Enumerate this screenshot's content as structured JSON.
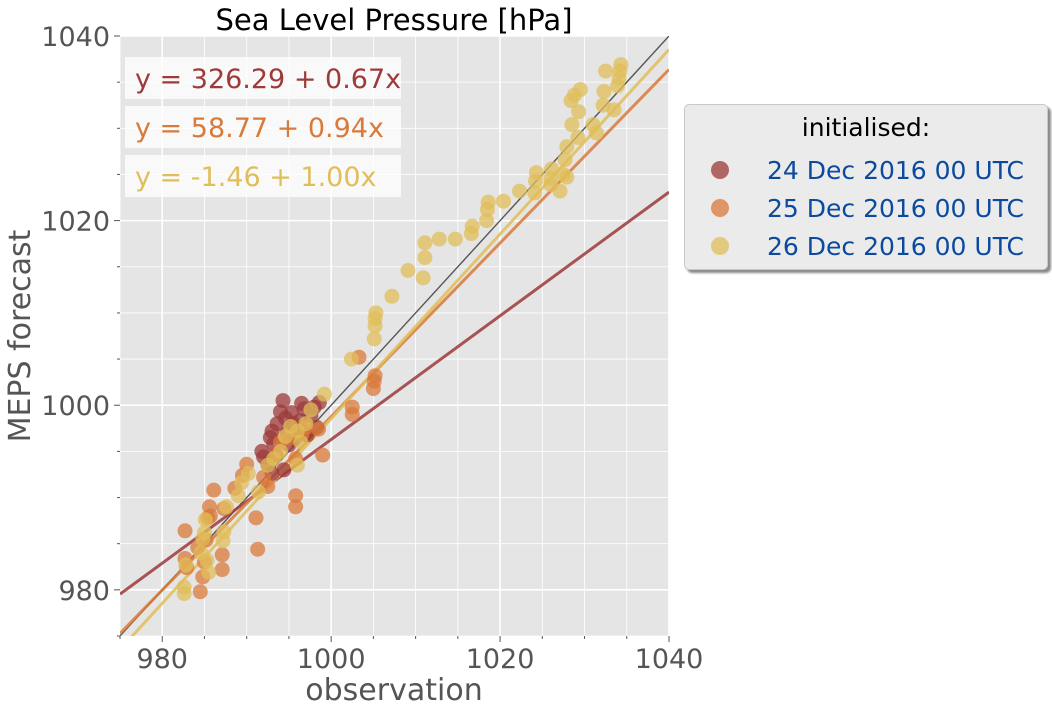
{
  "chart_data": {
    "type": "scatter",
    "title": "Sea Level Pressure [hPa]",
    "xlabel": "observation",
    "ylabel": "MEPS forecast",
    "xlim": [
      975,
      1040
    ],
    "ylim": [
      975,
      1040
    ],
    "xticks": [
      980,
      1000,
      1020,
      1040
    ],
    "yticks": [
      980,
      1000,
      1020,
      1040
    ],
    "grid": true,
    "legend": {
      "title": "initialised:",
      "placement": "outside-right"
    },
    "series": [
      {
        "name": "24 Dec 2016 00 UTC",
        "color": "#9e3a3a",
        "fit_label": "y = 326.29 + 0.67x",
        "fit": {
          "intercept": 326.29,
          "slope": 0.67
        },
        "points": [
          [
            992.8,
            996.5
          ],
          [
            993.0,
            997.2
          ],
          [
            993.2,
            995.8
          ],
          [
            993.4,
            994.6
          ],
          [
            993.6,
            998.0
          ],
          [
            994.0,
            999.3
          ],
          [
            994.3,
            1000.5
          ],
          [
            994.6,
            998.6
          ],
          [
            994.8,
            997.0
          ],
          [
            995.0,
            995.7
          ],
          [
            995.3,
            999.2
          ],
          [
            995.6,
            996.3
          ],
          [
            996.0,
            997.4
          ],
          [
            996.3,
            998.3
          ],
          [
            996.8,
            999.6
          ],
          [
            997.2,
            996.8
          ],
          [
            997.6,
            998.9
          ],
          [
            998.0,
            999.8
          ],
          [
            998.3,
            997.6
          ],
          [
            992.0,
            994.4
          ],
          [
            992.5,
            993.6
          ],
          [
            993.0,
            992.6
          ],
          [
            991.8,
            995.0
          ],
          [
            994.4,
            993.0
          ],
          [
            995.5,
            998.0
          ],
          [
            996.5,
            1000.2
          ],
          [
            997.0,
            997.0
          ],
          [
            998.6,
            1000.3
          ]
        ]
      },
      {
        "name": "25 Dec 2016 00 UTC",
        "color": "#d97a3a",
        "fit_label": "y = 58.77 + 0.94x",
        "fit": {
          "intercept": 58.77,
          "slope": 0.94
        },
        "points": [
          [
            982.7,
            986.4
          ],
          [
            982.7,
            983.4
          ],
          [
            982.9,
            982.4
          ],
          [
            984.5,
            979.8
          ],
          [
            984.8,
            981.4
          ],
          [
            985.0,
            983.0
          ],
          [
            985.2,
            985.4
          ],
          [
            985.4,
            987.8
          ],
          [
            985.6,
            989.0
          ],
          [
            987.1,
            982.2
          ],
          [
            987.1,
            983.8
          ],
          [
            987.3,
            988.8
          ],
          [
            988.6,
            991.0
          ],
          [
            989.5,
            992.4
          ],
          [
            990.0,
            993.6
          ],
          [
            991.1,
            987.8
          ],
          [
            991.3,
            984.4
          ],
          [
            992.0,
            992.2
          ],
          [
            992.5,
            991.2
          ],
          [
            993.5,
            994.6
          ],
          [
            994.0,
            996.0
          ],
          [
            995.0,
            996.4
          ],
          [
            995.8,
            990.2
          ],
          [
            995.8,
            989.0
          ],
          [
            995.8,
            994.2
          ],
          [
            996.5,
            996.8
          ],
          [
            997.0,
            997.6
          ],
          [
            998.5,
            997.4
          ],
          [
            999.0,
            994.6
          ],
          [
            1002.5,
            999.8
          ],
          [
            1002.5,
            999.0
          ],
          [
            1005.0,
            1001.8
          ],
          [
            1005.1,
            1002.6
          ],
          [
            1005.2,
            1003.2
          ],
          [
            1003.3,
            1005.2
          ],
          [
            985.7,
            988.0
          ],
          [
            984.2,
            984.6
          ],
          [
            986.1,
            990.8
          ]
        ]
      },
      {
        "name": "26 Dec 2016 00 UTC",
        "color": "#e0be5a",
        "fit_label": "y = -1.46 + 1.00x",
        "fit": {
          "intercept": -1.46,
          "slope": 1.0
        },
        "points": [
          [
            982.6,
            979.6
          ],
          [
            982.6,
            980.3
          ],
          [
            982.8,
            982.7
          ],
          [
            984.6,
            984.0
          ],
          [
            984.8,
            985.5
          ],
          [
            985.0,
            986.2
          ],
          [
            985.1,
            987.6
          ],
          [
            985.3,
            983.2
          ],
          [
            985.5,
            981.9
          ],
          [
            987.2,
            985.3
          ],
          [
            987.3,
            986.3
          ],
          [
            987.6,
            989.0
          ],
          [
            989.0,
            990.2
          ],
          [
            989.4,
            991.6
          ],
          [
            990.2,
            992.6
          ],
          [
            991.4,
            990.6
          ],
          [
            992.5,
            993.5
          ],
          [
            993.2,
            994.2
          ],
          [
            994.0,
            995.0
          ],
          [
            994.6,
            996.6
          ],
          [
            995.2,
            997.7
          ],
          [
            996.0,
            997.2
          ],
          [
            996.0,
            993.5
          ],
          [
            996.4,
            996.0
          ],
          [
            997.0,
            998.0
          ],
          [
            997.6,
            999.5
          ],
          [
            999.2,
            1001.2
          ],
          [
            1002.4,
            1005.0
          ],
          [
            1005.1,
            1007.2
          ],
          [
            1005.2,
            1008.6
          ],
          [
            1005.2,
            1009.4
          ],
          [
            1005.3,
            1010.0
          ],
          [
            1007.2,
            1011.8
          ],
          [
            1009.1,
            1014.6
          ],
          [
            1010.9,
            1013.8
          ],
          [
            1011.1,
            1016.0
          ],
          [
            1011.1,
            1017.6
          ],
          [
            1012.8,
            1018.0
          ],
          [
            1014.7,
            1018.0
          ],
          [
            1016.6,
            1018.6
          ],
          [
            1016.7,
            1019.4
          ],
          [
            1018.4,
            1020.0
          ],
          [
            1018.5,
            1021.2
          ],
          [
            1018.6,
            1022.0
          ],
          [
            1020.4,
            1022.1
          ],
          [
            1022.3,
            1023.2
          ],
          [
            1024.1,
            1023.0
          ],
          [
            1024.2,
            1024.3
          ],
          [
            1024.3,
            1025.2
          ],
          [
            1026.0,
            1024.6
          ],
          [
            1026.1,
            1025.6
          ],
          [
            1027.1,
            1023.2
          ],
          [
            1027.5,
            1025.0
          ],
          [
            1027.7,
            1026.6
          ],
          [
            1027.9,
            1028.0
          ],
          [
            1028.4,
            1033.0
          ],
          [
            1028.5,
            1030.4
          ],
          [
            1029.2,
            1029.0
          ],
          [
            1029.3,
            1031.8
          ],
          [
            1029.5,
            1034.2
          ],
          [
            1031.0,
            1030.4
          ],
          [
            1032.2,
            1032.5
          ],
          [
            1032.3,
            1034.0
          ],
          [
            1032.5,
            1036.2
          ],
          [
            1033.9,
            1034.6
          ],
          [
            1034.1,
            1035.4
          ],
          [
            1034.2,
            1036.2
          ],
          [
            1034.3,
            1036.9
          ],
          [
            1031.4,
            1029.5
          ],
          [
            1028.8,
            1033.6
          ],
          [
            1027.9,
            1024.7
          ],
          [
            1026.0,
            1023.9
          ],
          [
            1033.5,
            1032.0
          ]
        ]
      }
    ]
  }
}
